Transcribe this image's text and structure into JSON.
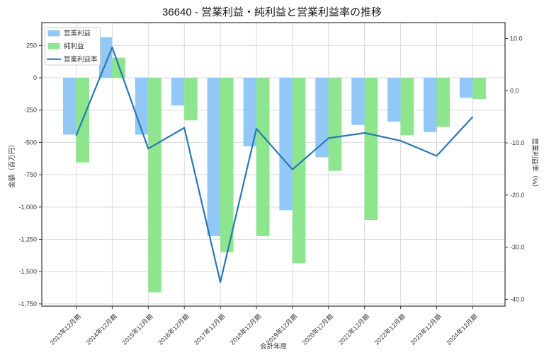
{
  "window": {
    "title": "36640 - 営業利益・純利益と営業利益率の推移"
  },
  "chart_data": {
    "type": "bar",
    "title": "36640 - 営業利益・純利益と営業利益率の推移",
    "xlabel": "会計年度",
    "ylabel_left": "金額（百万円）",
    "ylabel_right": "営業利益率（%）",
    "grid": true,
    "legend_position": "upper-left",
    "categories": [
      "2013年12月期",
      "2014年12月期",
      "2015年12月期",
      "2016年12月期",
      "2017年12月期",
      "2018年12月期",
      "2019年12月期",
      "2020年12月期",
      "2021年12月期",
      "2022年12月期",
      "2023年12月期",
      "2024年12月期"
    ],
    "series": [
      {
        "name": "営業利益",
        "type": "bar",
        "axis": "left",
        "color": "#92c8f5",
        "values": [
          -440,
          315,
          -440,
          -215,
          -1225,
          -530,
          -1025,
          -615,
          -365,
          -340,
          -420,
          -155
        ]
      },
      {
        "name": "純利益",
        "type": "bar",
        "axis": "left",
        "color": "#8de68d",
        "values": [
          -655,
          155,
          -1660,
          -330,
          -1350,
          -1225,
          -1435,
          -720,
          -1100,
          -445,
          -380,
          -165
        ]
      },
      {
        "name": "営業利益率",
        "type": "line",
        "axis": "right",
        "color": "#2977b5",
        "values": [
          -8.6,
          8.3,
          -11.1,
          -7.1,
          -36.7,
          -7.3,
          -15.1,
          -9.1,
          -8.1,
          -9.6,
          -12.5,
          -5.0
        ]
      }
    ],
    "left_axis": {
      "min": -1767,
      "max": 427,
      "ticks": [
        250,
        0,
        -250,
        -500,
        -750,
        -1000,
        -1250,
        -1500,
        -1750
      ],
      "tick_labels": [
        "250",
        "0",
        "-250",
        "-500",
        "-750",
        "-1,000",
        "-1,250",
        "-1,500",
        "-1,750"
      ]
    },
    "right_axis": {
      "min": -41.3,
      "max": 13.05,
      "ticks": [
        10,
        0,
        -10,
        -20,
        -30,
        -40
      ],
      "tick_labels": [
        "10.0",
        "0.0",
        "-10.0",
        "-20.0",
        "-30.0",
        "-40.0"
      ]
    },
    "colors": {
      "grid": "#d8d8d8",
      "spine": "#333333",
      "legend_border": "#cccccc",
      "background": "#ffffff"
    }
  }
}
